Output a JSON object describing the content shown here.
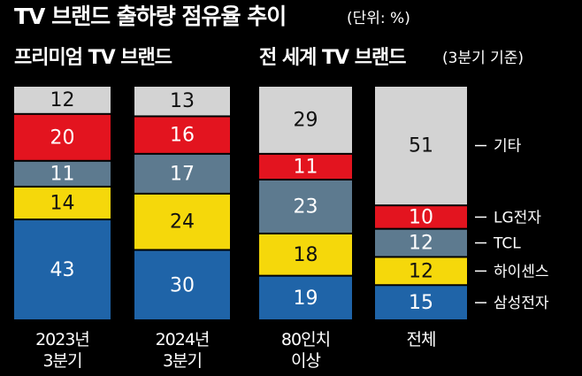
{
  "title": "TV 브랜드 출하량 점유율 추이",
  "unit": "(단위: %)",
  "chart_data": [
    {
      "type": "stacked_bar",
      "title": "프리미엄 TV 브랜드",
      "categories": [
        "2023년\n3분기",
        "2024년\n3분기"
      ],
      "ylim": [
        0,
        100
      ],
      "legend": false,
      "series": [
        {
          "name": "삼성전자",
          "color": "#1f64a8",
          "label_color": "#ffffff",
          "values": [
            43,
            30
          ]
        },
        {
          "name": "하이센스",
          "color": "#f5d80b",
          "label_color": "#111111",
          "values": [
            14,
            24
          ]
        },
        {
          "name": "TCL",
          "color": "#5d7a8f",
          "label_color": "#ffffff",
          "values": [
            11,
            17
          ]
        },
        {
          "name": "LG전자",
          "color": "#e3141f",
          "label_color": "#ffffff",
          "values": [
            20,
            16
          ]
        },
        {
          "name": "기타",
          "color": "#d3d3d3",
          "label_color": "#111111",
          "values": [
            12,
            13
          ]
        }
      ]
    },
    {
      "type": "stacked_bar",
      "title": "전 세계 TV 브랜드",
      "subtitle": "(3분기 기준)",
      "categories": [
        "80인치\n이상",
        "전체"
      ],
      "ylim": [
        0,
        100
      ],
      "legend": true,
      "series": [
        {
          "name": "삼성전자",
          "color": "#1f64a8",
          "label_color": "#ffffff",
          "values": [
            19,
            15
          ]
        },
        {
          "name": "하이센스",
          "color": "#f5d80b",
          "label_color": "#111111",
          "values": [
            18,
            12
          ]
        },
        {
          "name": "TCL",
          "color": "#5d7a8f",
          "label_color": "#ffffff",
          "values": [
            23,
            12
          ]
        },
        {
          "name": "LG전자",
          "color": "#e3141f",
          "label_color": "#ffffff",
          "values": [
            11,
            10
          ]
        },
        {
          "name": "기타",
          "color": "#d3d3d3",
          "label_color": "#111111",
          "values": [
            29,
            51
          ]
        }
      ]
    }
  ]
}
